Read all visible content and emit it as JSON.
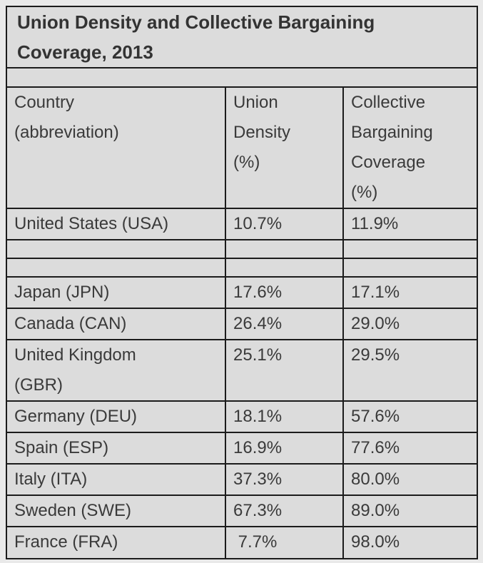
{
  "page": {
    "background_color": "#e9e9e9",
    "table_background_color": "#dcdcdc",
    "border_color": "#1b1b1b",
    "text_color": "#3a3a3a"
  },
  "table": {
    "title": "Union Density and Collective Bargaining\nCoverage, 2013",
    "columns": [
      {
        "label": "Country\n(abbreviation)"
      },
      {
        "label": "Union\nDensity\n(%)"
      },
      {
        "label": "Collective\nBargaining\nCoverage\n(%)"
      }
    ],
    "rows": [
      {
        "country": "United States (USA)",
        "union_density": "10.7%",
        "coverage": "11.9%"
      },
      {
        "country": "",
        "union_density": "",
        "coverage": ""
      },
      {
        "country": "",
        "union_density": "",
        "coverage": ""
      },
      {
        "country": "Japan (JPN)",
        "union_density": "17.6%",
        "coverage": "17.1%"
      },
      {
        "country": "Canada (CAN)",
        "union_density": "26.4%",
        "coverage": "29.0%"
      },
      {
        "country": "United Kingdom\n(GBR)",
        "union_density": "25.1%",
        "coverage": "29.5%"
      },
      {
        "country": "Germany (DEU)",
        "union_density": "18.1%",
        "coverage": "57.6%"
      },
      {
        "country": "Spain (ESP)",
        "union_density": "16.9%",
        "coverage": "77.6%"
      },
      {
        "country": "Italy (ITA)",
        "union_density": "37.3%",
        "coverage": "80.0%"
      },
      {
        "country": "Sweden (SWE)",
        "union_density": "67.3%",
        "coverage": "89.0%"
      },
      {
        "country": "France (FRA)",
        "union_density": " 7.7%",
        "coverage": "98.0%"
      }
    ]
  },
  "chart_data": {
    "type": "table",
    "title": "Union Density and Collective Bargaining Coverage, 2013",
    "columns": [
      "Country (abbreviation)",
      "Union Density (%)",
      "Collective Bargaining Coverage (%)"
    ],
    "rows": [
      [
        "United States (USA)",
        10.7,
        11.9
      ],
      [
        "Japan (JPN)",
        17.6,
        17.1
      ],
      [
        "Canada (CAN)",
        26.4,
        29.0
      ],
      [
        "United Kingdom (GBR)",
        25.1,
        29.5
      ],
      [
        "Germany (DEU)",
        18.1,
        57.6
      ],
      [
        "Spain (ESP)",
        16.9,
        77.6
      ],
      [
        "Italy (ITA)",
        37.3,
        80.0
      ],
      [
        "Sweden (SWE)",
        67.3,
        89.0
      ],
      [
        "France (FRA)",
        7.7,
        98.0
      ]
    ]
  }
}
